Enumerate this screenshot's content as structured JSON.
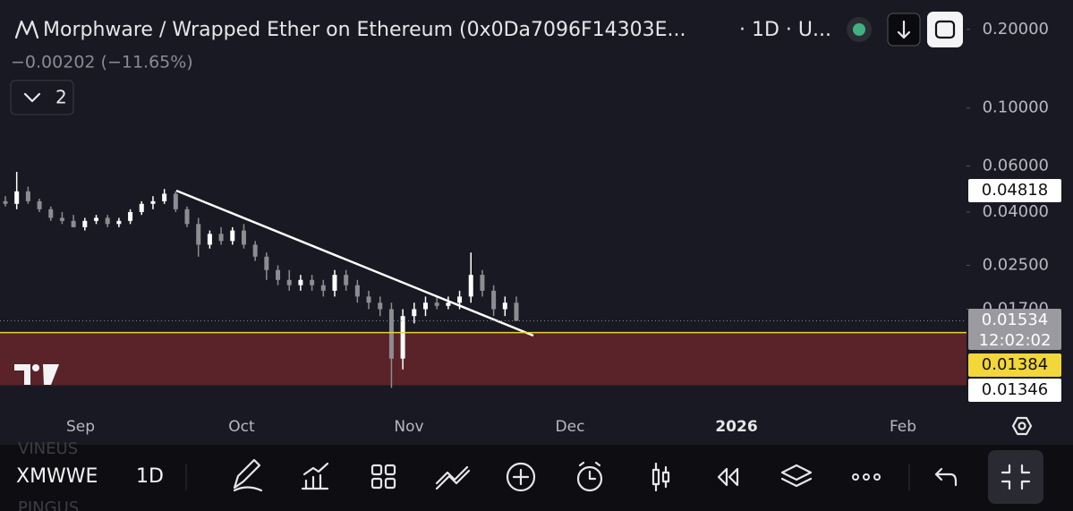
{
  "header": {
    "title": "Morphware / Wrapped Ether on Ethereum (0x0Da7096F14303E...",
    "interval": "· 1D · U...",
    "change": "−0.00202 (−11.65%)",
    "indicators_count": "2"
  },
  "chart_data": {
    "type": "candlestick",
    "open": [
      0.044,
      0.043,
      0.048,
      0.044,
      0.041,
      0.038,
      0.037,
      0.035,
      0.037,
      0.038,
      0.036,
      0.037,
      0.04,
      0.043,
      0.044,
      0.047,
      0.041,
      0.036,
      0.03,
      0.033,
      0.031,
      0.034,
      0.03,
      0.027,
      0.024,
      0.022,
      0.021,
      0.022,
      0.021,
      0.02,
      0.023,
      0.021,
      0.019,
      0.018,
      0.017,
      0.011,
      0.016,
      0.017,
      0.018,
      0.0175,
      0.018,
      0.019,
      0.023,
      0.02,
      0.017,
      0.018
    ],
    "high": [
      0.046,
      0.057,
      0.05,
      0.045,
      0.042,
      0.04,
      0.039,
      0.038,
      0.039,
      0.039,
      0.038,
      0.041,
      0.044,
      0.046,
      0.049,
      0.048,
      0.042,
      0.038,
      0.034,
      0.035,
      0.035,
      0.036,
      0.031,
      0.028,
      0.025,
      0.024,
      0.023,
      0.023,
      0.022,
      0.024,
      0.024,
      0.022,
      0.02,
      0.019,
      0.018,
      0.017,
      0.018,
      0.019,
      0.019,
      0.019,
      0.02,
      0.028,
      0.024,
      0.021,
      0.019,
      0.019
    ],
    "low": [
      0.042,
      0.041,
      0.043,
      0.04,
      0.037,
      0.036,
      0.035,
      0.034,
      0.036,
      0.035,
      0.035,
      0.036,
      0.039,
      0.041,
      0.043,
      0.04,
      0.035,
      0.027,
      0.029,
      0.03,
      0.03,
      0.029,
      0.026,
      0.022,
      0.021,
      0.02,
      0.02,
      0.02,
      0.019,
      0.019,
      0.02,
      0.018,
      0.017,
      0.016,
      0.0085,
      0.01,
      0.015,
      0.016,
      0.017,
      0.017,
      0.017,
      0.018,
      0.019,
      0.016,
      0.016,
      0.016
    ],
    "close": [
      0.043,
      0.048,
      0.044,
      0.041,
      0.038,
      0.037,
      0.035,
      0.037,
      0.038,
      0.036,
      0.037,
      0.04,
      0.043,
      0.044,
      0.047,
      0.041,
      0.036,
      0.03,
      0.033,
      0.031,
      0.034,
      0.03,
      0.027,
      0.024,
      0.022,
      0.021,
      0.022,
      0.021,
      0.02,
      0.023,
      0.021,
      0.019,
      0.018,
      0.017,
      0.011,
      0.016,
      0.017,
      0.018,
      0.0175,
      0.018,
      0.019,
      0.023,
      0.02,
      0.017,
      0.018,
      0.01534
    ],
    "up_color": "#ffffff",
    "down_color": "#8c8c92",
    "log_scale": true,
    "ylim": [
      0.00717,
      0.259
    ],
    "yticks": [
      {
        "value": 0.2,
        "label": "0.20000"
      },
      {
        "value": 0.1,
        "label": "0.10000"
      },
      {
        "value": 0.06,
        "label": "0.06000"
      },
      {
        "value": 0.04,
        "label": "0.04000"
      },
      {
        "value": 0.025,
        "label": "0.02500"
      },
      {
        "value": 0.017,
        "label": "0.01700"
      }
    ],
    "x_labels": [
      "Sep",
      "Oct",
      "Nov",
      "Dec",
      "2026",
      "Feb"
    ],
    "price_labels": [
      0.04818,
      0.01534,
      0.01384,
      0.01346
    ],
    "countdown": "12:02:02",
    "zone": {
      "top": 0.01384,
      "bottom": 0.0087,
      "color": "#5a2329"
    }
  },
  "toolbar": {
    "symbol": "XMWWE",
    "interval": "1D"
  },
  "watchlist_ghost": [
    "VINEUS",
    "PINGUS"
  ]
}
